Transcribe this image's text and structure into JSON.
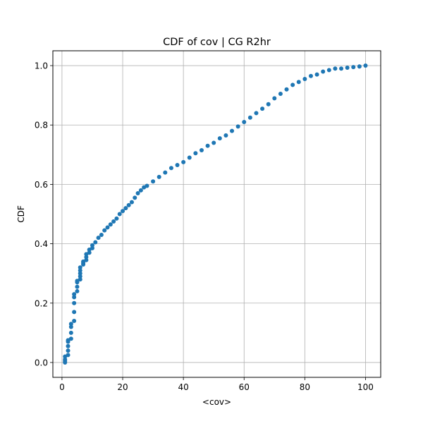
{
  "chart_data": {
    "type": "scatter",
    "title": "CDF of cov | CG R2hr",
    "xlabel": "<cov>",
    "ylabel": "CDF",
    "xlim": [
      -3,
      105
    ],
    "ylim": [
      -0.05,
      1.05
    ],
    "xticks": [
      0,
      20,
      40,
      60,
      80,
      100
    ],
    "yticks": [
      0.0,
      0.2,
      0.4,
      0.6,
      0.8,
      1.0
    ],
    "xtick_labels": [
      "0",
      "20",
      "40",
      "60",
      "80",
      "100"
    ],
    "ytick_labels": [
      "0.0",
      "0.2",
      "0.4",
      "0.6",
      "0.8",
      "1.0"
    ],
    "grid": true,
    "legend": "none",
    "marker_color": "#1f77b4",
    "series": [
      {
        "x": [
          1,
          1,
          1,
          1,
          2,
          2,
          2,
          2,
          2,
          3,
          3,
          3,
          3,
          4,
          4,
          4,
          4,
          4,
          5,
          5,
          5,
          5,
          6,
          6,
          6,
          6,
          6,
          7,
          7,
          7,
          8,
          8,
          8,
          9,
          9,
          10,
          10,
          11,
          12,
          13,
          14,
          15,
          16,
          17,
          18,
          19,
          20,
          21,
          22,
          23,
          24,
          25,
          26,
          27,
          28,
          30,
          32,
          34,
          36,
          38,
          40,
          42,
          44,
          46,
          48,
          50,
          52,
          54,
          56,
          58,
          60,
          62,
          64,
          66,
          68,
          70,
          72,
          74,
          76,
          78,
          80,
          82,
          84,
          86,
          88,
          90,
          92,
          94,
          96,
          98,
          100
        ],
        "y": [
          0.0,
          0.005,
          0.01,
          0.02,
          0.025,
          0.04,
          0.055,
          0.07,
          0.075,
          0.08,
          0.1,
          0.12,
          0.13,
          0.14,
          0.17,
          0.2,
          0.22,
          0.23,
          0.24,
          0.255,
          0.27,
          0.275,
          0.28,
          0.29,
          0.3,
          0.31,
          0.32,
          0.33,
          0.335,
          0.34,
          0.345,
          0.355,
          0.365,
          0.37,
          0.38,
          0.385,
          0.395,
          0.405,
          0.42,
          0.43,
          0.445,
          0.455,
          0.465,
          0.475,
          0.485,
          0.5,
          0.51,
          0.52,
          0.53,
          0.54,
          0.555,
          0.57,
          0.58,
          0.59,
          0.595,
          0.61,
          0.625,
          0.64,
          0.655,
          0.665,
          0.675,
          0.69,
          0.705,
          0.715,
          0.73,
          0.74,
          0.755,
          0.765,
          0.78,
          0.795,
          0.81,
          0.825,
          0.84,
          0.855,
          0.87,
          0.89,
          0.905,
          0.92,
          0.935,
          0.945,
          0.955,
          0.965,
          0.97,
          0.98,
          0.985,
          0.99,
          0.99,
          0.993,
          0.995,
          0.997,
          1.0
        ]
      }
    ]
  }
}
